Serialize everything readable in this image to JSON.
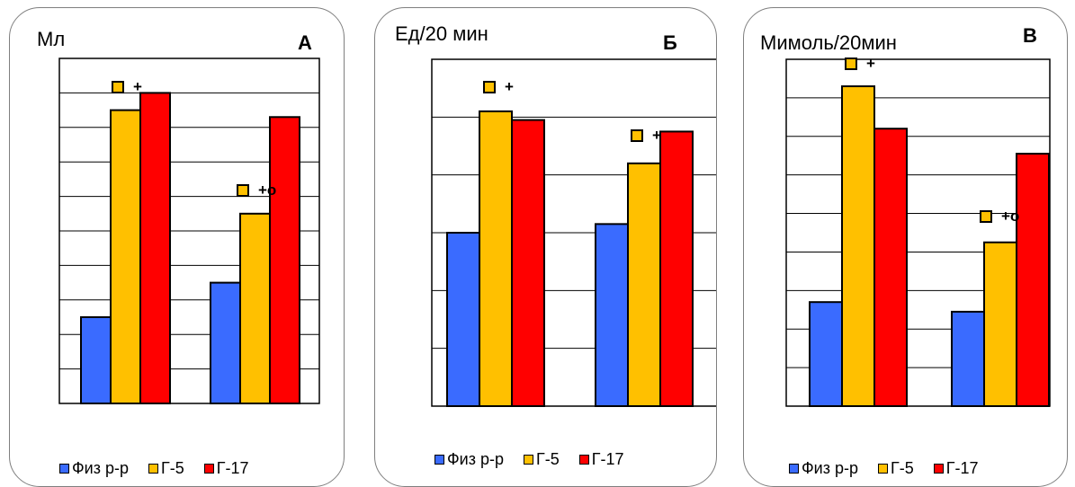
{
  "colors": {
    "Физ р-р": "#3a6bff",
    "Г-5": "#ffc000",
    "Г-17": "#ff0000"
  },
  "legend": [
    "Физ р-р",
    "Г-5",
    "Г-17"
  ],
  "chart_data": [
    {
      "type": "bar",
      "ylabel": "Мл",
      "panel_label": "А",
      "ylim": [
        0,
        10
      ],
      "grid": true,
      "legend_position": "bottom",
      "groups": [
        "",
        ""
      ],
      "series": [
        {
          "name": "Физ р-р",
          "values": [
            2.5,
            3.5
          ]
        },
        {
          "name": "Г-5",
          "values": [
            8.5,
            5.5
          ]
        },
        {
          "name": "Г-17",
          "values": [
            9.0,
            8.3
          ]
        }
      ],
      "annotations": [
        {
          "group": 0,
          "text": "+"
        },
        {
          "group": 1,
          "text": "+о"
        }
      ]
    },
    {
      "type": "bar",
      "ylabel": "Ед/20 мин",
      "panel_label": "Б",
      "ylim": [
        0,
        6
      ],
      "grid": true,
      "legend_position": "bottom",
      "groups": [
        "",
        ""
      ],
      "series": [
        {
          "name": "Физ р-р",
          "values": [
            3.0,
            3.15
          ]
        },
        {
          "name": "Г-5",
          "values": [
            5.1,
            4.2
          ]
        },
        {
          "name": "Г-17",
          "values": [
            4.95,
            4.75
          ]
        }
      ],
      "annotations": [
        {
          "group": 0,
          "text": "+"
        },
        {
          "group": 1,
          "text": "+"
        }
      ]
    },
    {
      "type": "bar",
      "ylabel": "Мимоль/20мин",
      "panel_label": "В",
      "ylim": [
        0,
        9
      ],
      "grid": true,
      "legend_position": "bottom",
      "groups": [
        "",
        ""
      ],
      "series": [
        {
          "name": "Физ р-р",
          "values": [
            2.7,
            2.45
          ]
        },
        {
          "name": "Г-5",
          "values": [
            8.3,
            4.25
          ]
        },
        {
          "name": "Г-17",
          "values": [
            7.2,
            6.55
          ]
        }
      ],
      "annotations": [
        {
          "group": 0,
          "text": "+"
        },
        {
          "group": 1,
          "text": "+о"
        }
      ]
    }
  ]
}
